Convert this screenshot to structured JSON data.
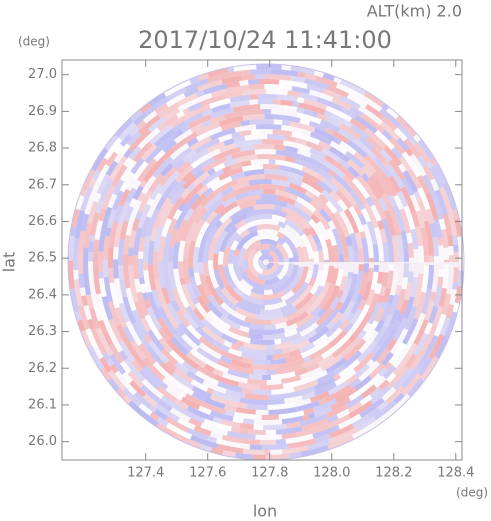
{
  "chart_data": {
    "type": "ppi",
    "title": "2017/10/24 11:41:00",
    "subtitle": "ALT(km) 2.0",
    "x_label": "lon",
    "y_label": "lat",
    "x_unit": "(deg)",
    "y_unit": "(deg)",
    "xlim": [
      127.13,
      128.42
    ],
    "ylim": [
      25.95,
      27.04
    ],
    "xticks": [
      {
        "value": 127.4,
        "label": "127.4"
      },
      {
        "value": 127.6,
        "label": "127.6"
      },
      {
        "value": 127.8,
        "label": "127.8"
      },
      {
        "value": 128.0,
        "label": "128.0"
      },
      {
        "value": 128.2,
        "label": "128.2"
      },
      {
        "value": 128.4,
        "label": "128.4"
      }
    ],
    "yticks": [
      {
        "value": 26.0,
        "label": "26.0"
      },
      {
        "value": 26.1,
        "label": "26.1"
      },
      {
        "value": 26.2,
        "label": "26.2"
      },
      {
        "value": 26.3,
        "label": "26.3"
      },
      {
        "value": 26.4,
        "label": "26.4"
      },
      {
        "value": 26.5,
        "label": "26.5"
      },
      {
        "value": 26.6,
        "label": "26.6"
      },
      {
        "value": 26.7,
        "label": "26.7"
      },
      {
        "value": 26.8,
        "label": "26.8"
      },
      {
        "value": 26.9,
        "label": "26.9"
      },
      {
        "value": 27.0,
        "label": "27.0"
      }
    ]
  }
}
